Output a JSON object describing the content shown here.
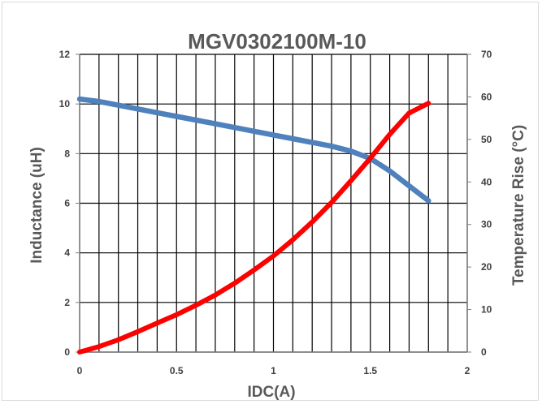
{
  "chart_data": {
    "type": "line",
    "title": "MGV0302100M-10",
    "xlabel": "IDC(A)",
    "ylabel": "Inductance (uH)",
    "y2label": "Temperature Rise (°C)",
    "xlim": [
      0,
      2
    ],
    "ylim": [
      0,
      12
    ],
    "y2lim": [
      0,
      70
    ],
    "x_ticks": [
      "0",
      "0.5",
      "1",
      "1.5",
      "2"
    ],
    "y_ticks": [
      "0",
      "2",
      "4",
      "6",
      "8",
      "10",
      "12"
    ],
    "y2_ticks": [
      "0",
      "10",
      "20",
      "30",
      "40",
      "50",
      "60",
      "70"
    ],
    "grid": true,
    "legend": "none",
    "series": [
      {
        "axis": "left",
        "color": "#4f81bd",
        "x": [
          0,
          0.1,
          0.2,
          0.3,
          0.4,
          0.5,
          0.6,
          0.7,
          0.8,
          0.9,
          1.0,
          1.1,
          1.2,
          1.3,
          1.4,
          1.5,
          1.6,
          1.7,
          1.8
        ],
        "values": [
          10.2,
          10.1,
          9.95,
          9.8,
          9.65,
          9.5,
          9.35,
          9.2,
          9.05,
          8.9,
          8.75,
          8.6,
          8.45,
          8.3,
          8.1,
          7.8,
          7.3,
          6.7,
          6.1
        ]
      },
      {
        "axis": "right",
        "color": "#ff0000",
        "x": [
          0,
          0.1,
          0.2,
          0.3,
          0.4,
          0.5,
          0.6,
          0.7,
          0.8,
          0.9,
          1.0,
          1.1,
          1.2,
          1.3,
          1.4,
          1.5,
          1.6,
          1.7,
          1.8
        ],
        "values": [
          0,
          1.3,
          2.9,
          4.8,
          6.8,
          8.8,
          11.0,
          13.4,
          16.2,
          19.3,
          22.6,
          26.4,
          30.6,
          35.2,
          40.3,
          45.6,
          51.2,
          56.2,
          58.5
        ]
      }
    ]
  }
}
